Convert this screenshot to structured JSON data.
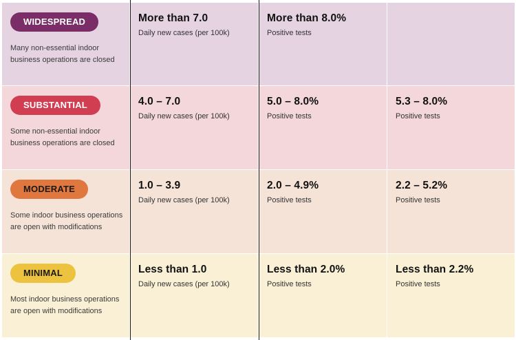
{
  "tiers": [
    {
      "label": "WIDESPREAD",
      "pill_bg": "#7a2d67",
      "pill_fg": "#ffffff",
      "description": "Many non-essential indoor business operations are closed",
      "cases": {
        "value": "More than 7.0",
        "label": "Daily new cases (per 100k)"
      },
      "positivity": {
        "value": "More than 8.0%",
        "label": "Positive tests"
      },
      "equity": {
        "value": "",
        "label": ""
      }
    },
    {
      "label": "SUBSTANTIAL",
      "pill_bg": "#d13e52",
      "pill_fg": "#ffffff",
      "description": "Some non-essential indoor business operations are closed",
      "cases": {
        "value": "4.0 – 7.0",
        "label": "Daily new cases (per 100k)"
      },
      "positivity": {
        "value": "5.0 – 8.0%",
        "label": "Positive tests"
      },
      "equity": {
        "value": "5.3 – 8.0%",
        "label": "Positive tests"
      }
    },
    {
      "label": "MODERATE",
      "pill_bg": "#e0773f",
      "pill_fg": "#1a1a1a",
      "description": "Some indoor business operations are open with modifications",
      "cases": {
        "value": "1.0 – 3.9",
        "label": "Daily new cases (per 100k)"
      },
      "positivity": {
        "value": "2.0 – 4.9%",
        "label": "Positive tests"
      },
      "equity": {
        "value": "2.2 – 5.2%",
        "label": "Positive tests"
      }
    },
    {
      "label": "MINIMAL",
      "pill_bg": "#ecc23e",
      "pill_fg": "#1a1a1a",
      "description": "Most indoor business operations are open with modifications",
      "cases": {
        "value": "Less than 1.0",
        "label": "Daily new cases (per 100k)"
      },
      "positivity": {
        "value": "Less than 2.0%",
        "label": "Positive tests"
      },
      "equity": {
        "value": "Less than 2.2%",
        "label": "Positive tests"
      }
    }
  ]
}
